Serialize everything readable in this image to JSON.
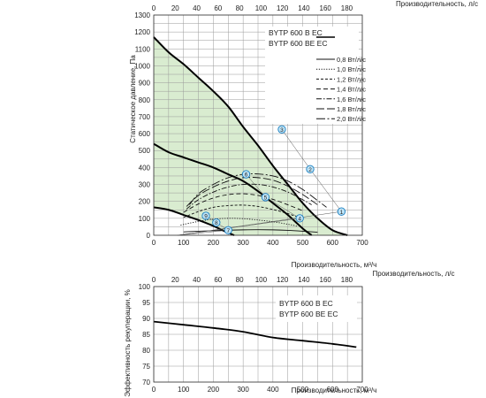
{
  "chart_data": [
    {
      "type": "line",
      "top_axis_label": "Производительность, л/с",
      "top_ticks": [
        0,
        20,
        40,
        60,
        80,
        100,
        120,
        140,
        160,
        180
      ],
      "xlabel": "Производительность, м³/ч",
      "ylabel": "Статическое давление, Па",
      "xlim": [
        0,
        700
      ],
      "ylim": [
        0,
        1300
      ],
      "x_ticks": [
        0,
        100,
        200,
        300,
        400,
        500,
        600,
        700
      ],
      "y_ticks": [
        0,
        100,
        200,
        300,
        400,
        500,
        600,
        700,
        800,
        900,
        1000,
        1100,
        1200,
        1300
      ],
      "grid": true,
      "legend_title_1": "BYTP 600 B EC",
      "legend_title_2": "BYTP 600 BE EC",
      "legend_position": "top-right",
      "shaded_color": "#d9ecd0",
      "curves": [
        {
          "x": [
            0,
            50,
            100,
            150,
            200,
            250,
            300,
            350,
            400,
            450,
            500,
            550,
            600,
            650
          ],
          "y": [
            1170,
            1080,
            1010,
            930,
            850,
            760,
            640,
            530,
            410,
            300,
            190,
            100,
            30,
            0
          ]
        },
        {
          "x": [
            0,
            50,
            100,
            150,
            200,
            250,
            300,
            350,
            400,
            450,
            500,
            530
          ],
          "y": [
            540,
            490,
            460,
            430,
            400,
            360,
            320,
            260,
            190,
            120,
            40,
            0
          ]
        },
        {
          "x": [
            0,
            50,
            100,
            150,
            200,
            230,
            270
          ],
          "y": [
            165,
            150,
            120,
            90,
            55,
            30,
            0
          ]
        }
      ],
      "series": [
        {
          "name": "0,8 Вт/л/с",
          "style": "solid",
          "x": [
            100,
            150,
            200,
            250,
            300,
            350,
            400,
            450,
            500,
            550
          ],
          "y": [
            20,
            24,
            27,
            30,
            32,
            33,
            32,
            29,
            24,
            18
          ]
        },
        {
          "name": "1,0 Вт/л/с",
          "style": "dotted",
          "x": [
            90,
            150,
            200,
            250,
            300,
            350,
            400,
            450,
            480
          ],
          "y": [
            60,
            82,
            95,
            100,
            98,
            90,
            80,
            65,
            55
          ]
        },
        {
          "name": "1,2 Вт/л/с",
          "style": "dashed-short",
          "x": [
            100,
            150,
            200,
            250,
            300,
            350,
            400,
            450,
            480
          ],
          "y": [
            105,
            140,
            165,
            175,
            178,
            170,
            152,
            128,
            110
          ]
        },
        {
          "name": "1,4 Вт/л/с",
          "style": "dashed",
          "x": [
            100,
            150,
            200,
            250,
            300,
            350,
            400,
            450,
            500
          ],
          "y": [
            135,
            185,
            220,
            240,
            245,
            235,
            212,
            180,
            145
          ]
        },
        {
          "name": "1,6 Вт/л/с",
          "style": "dashdot",
          "x": [
            110,
            150,
            200,
            250,
            300,
            350,
            400,
            450,
            500,
            530
          ],
          "y": [
            155,
            210,
            255,
            285,
            300,
            300,
            285,
            255,
            210,
            180
          ]
        },
        {
          "name": "1,8 Вт/л/с",
          "style": "dashed-long",
          "x": [
            110,
            150,
            200,
            250,
            300,
            350,
            400,
            450,
            500,
            550
          ],
          "y": [
            170,
            235,
            285,
            320,
            340,
            340,
            325,
            290,
            240,
            180
          ]
        },
        {
          "name": "2,0 Вт/л/с",
          "style": "dashdot-long",
          "x": [
            120,
            150,
            200,
            250,
            300,
            350,
            400,
            450,
            500,
            550,
            580
          ],
          "y": [
            180,
            245,
            300,
            340,
            360,
            362,
            350,
            320,
            270,
            205,
            165
          ]
        }
      ],
      "operating_points": [
        {
          "label": "1",
          "x": 630,
          "y": 140
        },
        {
          "label": "2",
          "x": 525,
          "y": 390
        },
        {
          "label": "3",
          "x": 430,
          "y": 625
        },
        {
          "label": "4",
          "x": 490,
          "y": 100
        },
        {
          "label": "5",
          "x": 375,
          "y": 225
        },
        {
          "label": "6",
          "x": 310,
          "y": 360
        },
        {
          "label": "7",
          "x": 250,
          "y": 30
        },
        {
          "label": "8",
          "x": 210,
          "y": 75
        },
        {
          "label": "9",
          "x": 175,
          "y": 115
        }
      ]
    },
    {
      "type": "line",
      "top_axis_label": "Производительность, л/с",
      "top_ticks": [
        0,
        20,
        40,
        60,
        80,
        100,
        120,
        140,
        160,
        180
      ],
      "xlabel": "Производительность, м³/ч",
      "ylabel": "Эффективность рекуперации, %",
      "xlim": [
        0,
        700
      ],
      "ylim": [
        70,
        100
      ],
      "x_ticks": [
        0,
        100,
        200,
        300,
        400,
        500,
        600,
        700
      ],
      "y_ticks": [
        70,
        75,
        80,
        85,
        90,
        95,
        100
      ],
      "grid": true,
      "legend_title_1": "BYTP 600 B EC",
      "legend_title_2": "BYTP 600 BE EC",
      "legend_position": "top-right",
      "series": [
        {
          "x": [
            0,
            100,
            200,
            300,
            400,
            500,
            600,
            680
          ],
          "y": [
            89,
            88,
            87,
            85.8,
            84,
            83,
            82,
            81
          ]
        }
      ]
    }
  ]
}
